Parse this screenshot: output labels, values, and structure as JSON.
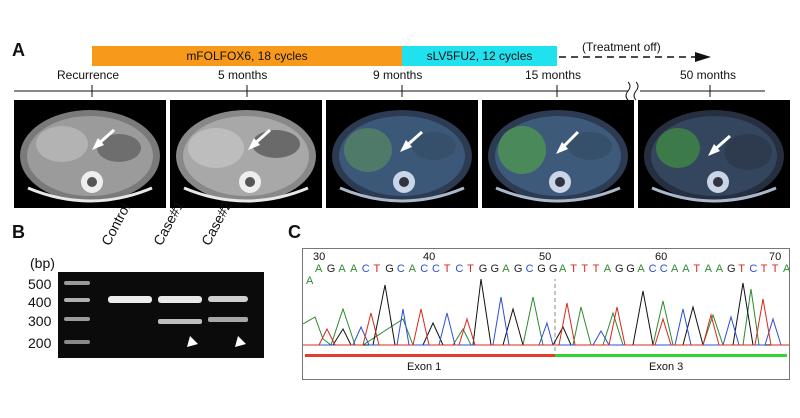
{
  "panel_a": {
    "label": "A",
    "bars": [
      {
        "label": "mFOLFOX6, 18 cycles",
        "color": "#f79a1c"
      },
      {
        "label": "sLV5FU2, 12 cycles",
        "color": "#22e1ee"
      }
    ],
    "treatment_off_label": "(Treatment off)",
    "timepoints": [
      "Recurrence",
      "5 months",
      "9 months",
      "15 months",
      "50 months"
    ]
  },
  "panel_b": {
    "label": "B",
    "unit_label": "(bp)",
    "ladder_ticks": [
      "500",
      "400",
      "300",
      "200"
    ],
    "lanes": [
      "Control",
      "Case#1",
      "Case#2"
    ]
  },
  "panel_c": {
    "label": "C",
    "position_numbers": [
      "30",
      "40",
      "50",
      "60",
      "70"
    ],
    "sequence_left": [
      "A",
      "G",
      "A",
      "A",
      "C",
      "T",
      "G",
      "C",
      "A",
      "C",
      "C",
      "T",
      "C",
      "T",
      "G",
      "G",
      "A",
      "G",
      "C",
      "G",
      "G"
    ],
    "sequence_right": [
      "A",
      "T",
      "T",
      "T",
      "A",
      "G",
      "G",
      "A",
      "C",
      "C",
      "A",
      "A",
      "T",
      "A",
      "A",
      "G",
      "T",
      "C",
      "T",
      "T",
      "A"
    ],
    "extra_base": "A",
    "exon_left": "Exon 1",
    "exon_right": "Exon 3",
    "exon_left_color": "#e43b2a",
    "exon_right_color": "#35d235"
  },
  "base_colors": {
    "A": "#2e8b2e",
    "G": "#222222",
    "C": "#2c4fd4",
    "T": "#d8281e"
  }
}
